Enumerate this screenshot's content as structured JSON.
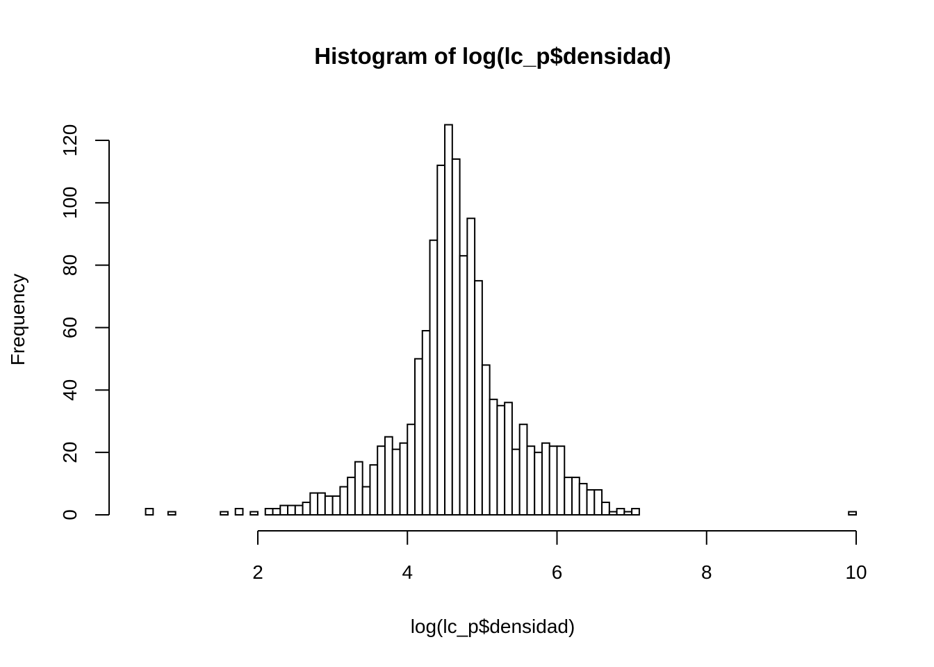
{
  "chart_data": {
    "type": "bar",
    "title": "Histogram of log(lc_p$densidad)",
    "xlabel": "log(lc_p$densidad)",
    "ylabel": "Frequency",
    "x_ticks": [
      2,
      4,
      6,
      8,
      10
    ],
    "y_ticks": [
      0,
      20,
      40,
      60,
      80,
      100,
      120
    ],
    "xlim": [
      2,
      10
    ],
    "ylim": [
      0,
      120
    ],
    "bin_width": 0.1,
    "bin_start": 0.5,
    "counts": [
      2,
      0,
      0,
      1,
      0,
      0,
      0,
      0,
      0,
      0,
      1,
      0,
      2,
      0,
      1,
      0,
      2,
      2,
      3,
      3,
      3,
      4,
      7,
      7,
      6,
      6,
      9,
      12,
      17,
      9,
      16,
      22,
      25,
      21,
      23,
      29,
      50,
      59,
      88,
      112,
      125,
      114,
      83,
      95,
      75,
      48,
      37,
      35,
      36,
      21,
      29,
      22,
      20,
      23,
      22,
      22,
      12,
      12,
      10,
      8,
      8,
      4,
      1,
      2,
      1,
      2,
      0,
      0,
      0,
      0,
      0,
      0,
      0,
      0,
      0,
      0,
      0,
      0,
      0,
      0,
      0,
      0,
      0,
      0,
      0,
      0,
      0,
      0,
      0,
      0,
      0,
      0,
      0,
      0,
      1
    ]
  }
}
